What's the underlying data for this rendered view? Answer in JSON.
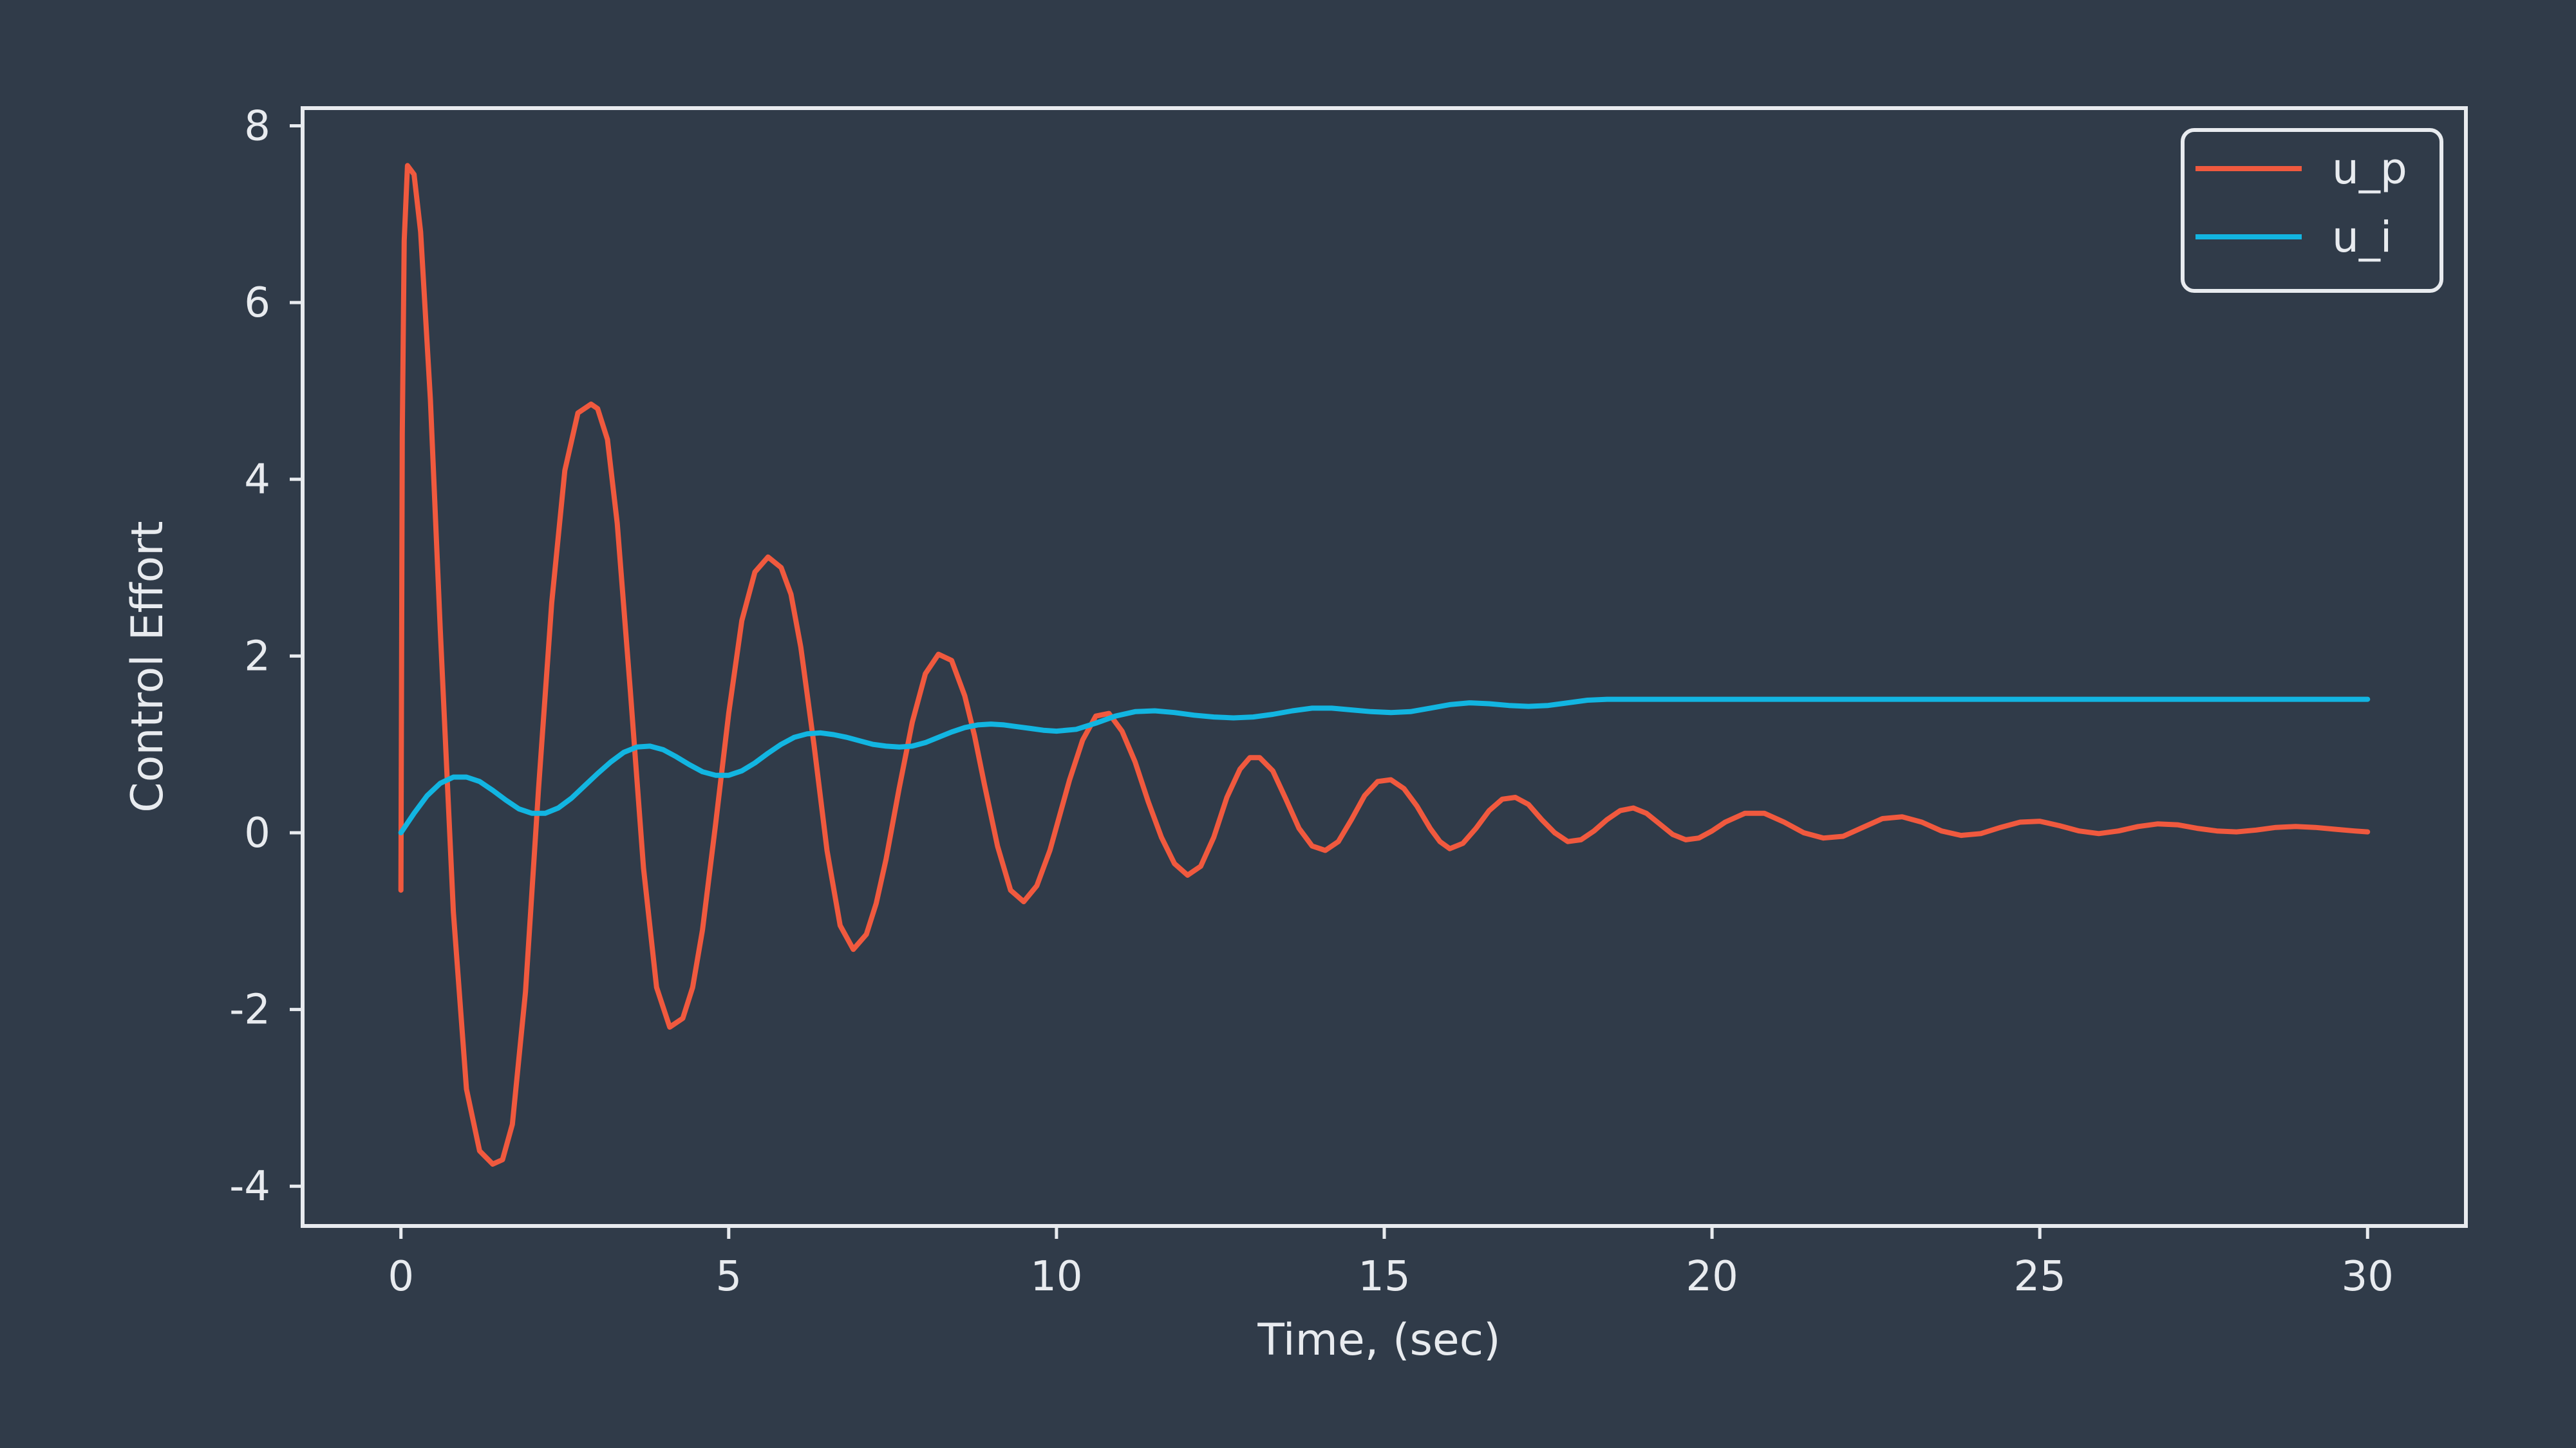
{
  "chart_data": {
    "type": "line",
    "title": "",
    "xlabel": "Time, (sec)",
    "ylabel": "Control Effort",
    "xlim": [
      -1.5,
      31.5
    ],
    "ylim": [
      -4.45,
      8.2
    ],
    "xticks": [
      0,
      5,
      10,
      15,
      20,
      25,
      30
    ],
    "xtick_labels": [
      "0",
      "5",
      "10",
      "15",
      "20",
      "25",
      "30"
    ],
    "yticks": [
      -4,
      -2,
      0,
      2,
      4,
      6,
      8
    ],
    "ytick_labels": [
      "-4",
      "-2",
      "0",
      "2",
      "4",
      "6",
      "8"
    ],
    "grid": false,
    "legend": "top-right",
    "background_color": "#303b49",
    "axis_color": "#e8ebef",
    "series": [
      {
        "name": "u_p",
        "color": "#f0593e",
        "x": [
          0,
          0.02,
          0.05,
          0.1,
          0.2,
          0.3,
          0.45,
          0.6,
          0.8,
          1.0,
          1.2,
          1.4,
          1.55,
          1.7,
          1.9,
          2.1,
          2.3,
          2.5,
          2.7,
          2.9,
          3.0,
          3.15,
          3.3,
          3.5,
          3.7,
          3.9,
          4.1,
          4.3,
          4.45,
          4.6,
          4.8,
          5.0,
          5.2,
          5.4,
          5.6,
          5.8,
          5.95,
          6.1,
          6.3,
          6.5,
          6.7,
          6.9,
          7.1,
          7.25,
          7.4,
          7.6,
          7.8,
          8.0,
          8.2,
          8.4,
          8.6,
          8.75,
          8.9,
          9.1,
          9.3,
          9.5,
          9.7,
          9.9,
          10.05,
          10.2,
          10.4,
          10.6,
          10.8,
          11.0,
          11.2,
          11.4,
          11.6,
          11.8,
          12.0,
          12.2,
          12.4,
          12.6,
          12.8,
          12.95,
          13.1,
          13.3,
          13.5,
          13.7,
          13.9,
          14.1,
          14.3,
          14.5,
          14.7,
          14.9,
          15.1,
          15.3,
          15.5,
          15.7,
          15.85,
          16.0,
          16.2,
          16.4,
          16.6,
          16.8,
          17.0,
          17.2,
          17.4,
          17.6,
          17.8,
          18.0,
          18.2,
          18.4,
          18.6,
          18.8,
          19.0,
          19.2,
          19.4,
          19.6,
          19.8,
          20.0,
          20.2,
          20.5,
          20.8,
          21.1,
          21.4,
          21.7,
          22.0,
          22.3,
          22.6,
          22.9,
          23.2,
          23.5,
          23.8,
          24.1,
          24.4,
          24.7,
          25.0,
          25.3,
          25.6,
          25.9,
          26.2,
          26.5,
          26.8,
          27.1,
          27.4,
          27.7,
          28.0,
          28.3,
          28.6,
          28.9,
          29.2,
          29.5,
          29.8,
          30.0
        ],
        "values": [
          -0.65,
          4.5,
          6.7,
          7.55,
          7.45,
          6.8,
          4.9,
          2.3,
          -0.9,
          -2.9,
          -3.6,
          -3.75,
          -3.7,
          -3.3,
          -1.8,
          0.5,
          2.6,
          4.1,
          4.75,
          4.85,
          4.8,
          4.45,
          3.5,
          1.6,
          -0.4,
          -1.75,
          -2.2,
          -2.1,
          -1.75,
          -1.1,
          0.1,
          1.35,
          2.4,
          2.95,
          3.12,
          3.0,
          2.7,
          2.1,
          1.0,
          -0.2,
          -1.05,
          -1.32,
          -1.15,
          -0.8,
          -0.3,
          0.5,
          1.25,
          1.8,
          2.02,
          1.95,
          1.55,
          1.1,
          0.55,
          -0.15,
          -0.65,
          -0.78,
          -0.6,
          -0.2,
          0.2,
          0.6,
          1.05,
          1.32,
          1.35,
          1.15,
          0.8,
          0.35,
          -0.05,
          -0.35,
          -0.48,
          -0.38,
          -0.05,
          0.4,
          0.72,
          0.85,
          0.85,
          0.7,
          0.38,
          0.05,
          -0.15,
          -0.2,
          -0.1,
          0.15,
          0.42,
          0.58,
          0.6,
          0.5,
          0.3,
          0.05,
          -0.1,
          -0.18,
          -0.12,
          0.05,
          0.25,
          0.38,
          0.4,
          0.32,
          0.15,
          0.0,
          -0.1,
          -0.08,
          0.02,
          0.15,
          0.25,
          0.28,
          0.22,
          0.1,
          -0.02,
          -0.08,
          -0.06,
          0.02,
          0.12,
          0.22,
          0.22,
          0.12,
          0.0,
          -0.06,
          -0.04,
          0.06,
          0.16,
          0.18,
          0.12,
          0.02,
          -0.03,
          -0.01,
          0.06,
          0.12,
          0.13,
          0.08,
          0.02,
          -0.01,
          0.02,
          0.07,
          0.1,
          0.09,
          0.05,
          0.02,
          0.01,
          0.03,
          0.06,
          0.07,
          0.06,
          0.04,
          0.02,
          0.01
        ]
      },
      {
        "name": "u_i",
        "color": "#12b5e1",
        "x": [
          0,
          0.2,
          0.4,
          0.6,
          0.8,
          1.0,
          1.2,
          1.4,
          1.6,
          1.8,
          2.0,
          2.2,
          2.4,
          2.6,
          2.8,
          3.0,
          3.2,
          3.4,
          3.6,
          3.8,
          4.0,
          4.2,
          4.4,
          4.6,
          4.8,
          5.0,
          5.2,
          5.4,
          5.6,
          5.8,
          6.0,
          6.2,
          6.4,
          6.6,
          6.8,
          7.0,
          7.2,
          7.4,
          7.6,
          7.8,
          8.0,
          8.2,
          8.4,
          8.6,
          8.8,
          9.0,
          9.2,
          9.4,
          9.6,
          9.8,
          10.0,
          10.3,
          10.6,
          10.9,
          11.2,
          11.5,
          11.8,
          12.1,
          12.4,
          12.7,
          13.0,
          13.3,
          13.6,
          13.9,
          14.2,
          14.5,
          14.8,
          15.1,
          15.4,
          15.7,
          16.0,
          16.3,
          16.6,
          16.9,
          17.2,
          17.5,
          17.8,
          18.1,
          18.4,
          18.7,
          19.0,
          19.5,
          20.0,
          20.5,
          21.0,
          22,
          23,
          24,
          25,
          26,
          27,
          28,
          29,
          30
        ],
        "values": [
          0.0,
          0.22,
          0.42,
          0.56,
          0.63,
          0.63,
          0.58,
          0.48,
          0.37,
          0.27,
          0.22,
          0.22,
          0.28,
          0.39,
          0.53,
          0.67,
          0.8,
          0.91,
          0.97,
          0.98,
          0.94,
          0.86,
          0.77,
          0.69,
          0.65,
          0.65,
          0.7,
          0.79,
          0.9,
          1.0,
          1.08,
          1.12,
          1.13,
          1.11,
          1.08,
          1.04,
          1.0,
          0.98,
          0.97,
          0.98,
          1.02,
          1.08,
          1.14,
          1.19,
          1.22,
          1.23,
          1.22,
          1.2,
          1.18,
          1.16,
          1.15,
          1.17,
          1.24,
          1.32,
          1.37,
          1.38,
          1.36,
          1.33,
          1.31,
          1.3,
          1.31,
          1.34,
          1.38,
          1.41,
          1.41,
          1.39,
          1.37,
          1.36,
          1.37,
          1.41,
          1.45,
          1.47,
          1.46,
          1.44,
          1.43,
          1.44,
          1.47,
          1.5,
          1.51,
          1.51,
          1.51,
          1.51,
          1.51,
          1.51,
          1.51,
          1.51,
          1.51,
          1.51,
          1.51,
          1.51,
          1.51,
          1.51,
          1.51,
          1.51
        ]
      }
    ]
  }
}
